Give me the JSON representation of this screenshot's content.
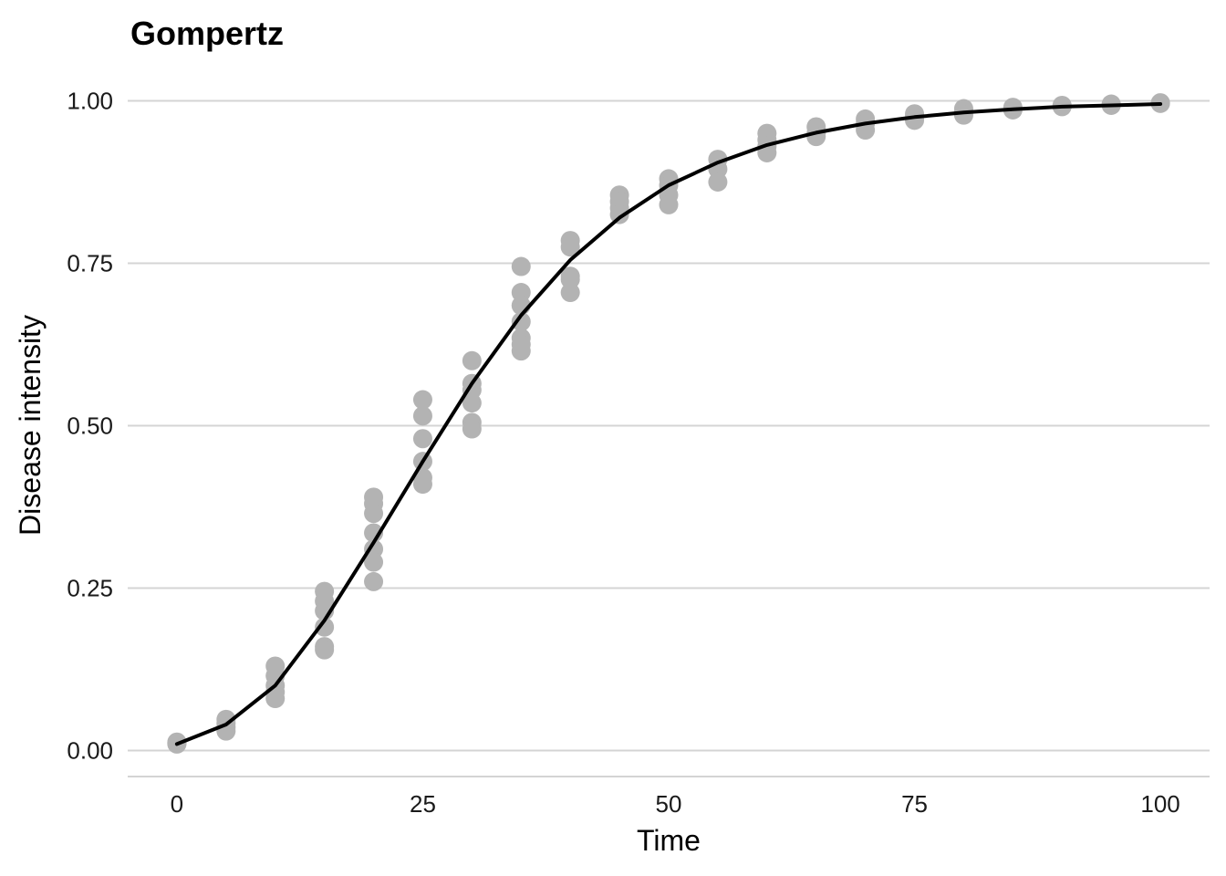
{
  "chart_data": {
    "type": "scatter",
    "title": "Gompertz",
    "xlabel": "Time",
    "ylabel": "Disease intensity",
    "xlim": [
      -5,
      105
    ],
    "ylim": [
      -0.04,
      1.04
    ],
    "x_ticks": [
      0,
      25,
      50,
      75,
      100
    ],
    "x_tick_labels": [
      "0",
      "25",
      "50",
      "75",
      "100"
    ],
    "y_ticks": [
      0,
      0.25,
      0.5,
      0.75,
      1.0
    ],
    "y_tick_labels": [
      "0.00",
      "0.25",
      "0.50",
      "0.75",
      "1.00"
    ],
    "grid": "horizontal",
    "legend": "none",
    "point_color": "#b3b3b3",
    "line_color": "#000000",
    "series": [
      {
        "type": "scatter",
        "points": [
          [
            0,
            0.012
          ],
          [
            0,
            0.011
          ],
          [
            0,
            0.01
          ],
          [
            0,
            0.013
          ],
          [
            5,
            0.048
          ],
          [
            5,
            0.042
          ],
          [
            5,
            0.036
          ],
          [
            5,
            0.03
          ],
          [
            10,
            0.13
          ],
          [
            10,
            0.115
          ],
          [
            10,
            0.1
          ],
          [
            10,
            0.09
          ],
          [
            10,
            0.08
          ],
          [
            15,
            0.245
          ],
          [
            15,
            0.23
          ],
          [
            15,
            0.215
          ],
          [
            15,
            0.19
          ],
          [
            15,
            0.16
          ],
          [
            15,
            0.155
          ],
          [
            20,
            0.39
          ],
          [
            20,
            0.38
          ],
          [
            20,
            0.365
          ],
          [
            20,
            0.335
          ],
          [
            20,
            0.31
          ],
          [
            20,
            0.29
          ],
          [
            20,
            0.26
          ],
          [
            25,
            0.54
          ],
          [
            25,
            0.515
          ],
          [
            25,
            0.48
          ],
          [
            25,
            0.445
          ],
          [
            25,
            0.42
          ],
          [
            25,
            0.41
          ],
          [
            30,
            0.6
          ],
          [
            30,
            0.565
          ],
          [
            30,
            0.555
          ],
          [
            30,
            0.535
          ],
          [
            30,
            0.505
          ],
          [
            30,
            0.495
          ],
          [
            35,
            0.745
          ],
          [
            35,
            0.705
          ],
          [
            35,
            0.685
          ],
          [
            35,
            0.66
          ],
          [
            35,
            0.635
          ],
          [
            35,
            0.625
          ],
          [
            35,
            0.615
          ],
          [
            40,
            0.785
          ],
          [
            40,
            0.775
          ],
          [
            40,
            0.73
          ],
          [
            40,
            0.725
          ],
          [
            40,
            0.705
          ],
          [
            45,
            0.855
          ],
          [
            45,
            0.845
          ],
          [
            45,
            0.835
          ],
          [
            45,
            0.825
          ],
          [
            50,
            0.88
          ],
          [
            50,
            0.87
          ],
          [
            50,
            0.855
          ],
          [
            50,
            0.84
          ],
          [
            55,
            0.91
          ],
          [
            55,
            0.895
          ],
          [
            55,
            0.875
          ],
          [
            60,
            0.95
          ],
          [
            60,
            0.94
          ],
          [
            60,
            0.93
          ],
          [
            60,
            0.92
          ],
          [
            65,
            0.96
          ],
          [
            65,
            0.95
          ],
          [
            65,
            0.945
          ],
          [
            70,
            0.972
          ],
          [
            70,
            0.965
          ],
          [
            70,
            0.955
          ],
          [
            75,
            0.98
          ],
          [
            75,
            0.975
          ],
          [
            75,
            0.97
          ],
          [
            80,
            0.988
          ],
          [
            80,
            0.983
          ],
          [
            80,
            0.978
          ],
          [
            85,
            0.99
          ],
          [
            85,
            0.986
          ],
          [
            90,
            0.993
          ],
          [
            90,
            0.991
          ],
          [
            95,
            0.995
          ],
          [
            95,
            0.993
          ],
          [
            100,
            0.997
          ],
          [
            100,
            0.996
          ]
        ]
      },
      {
        "type": "line",
        "x": [
          0,
          5,
          10,
          15,
          20,
          25,
          30,
          35,
          40,
          45,
          50,
          55,
          60,
          65,
          70,
          75,
          80,
          85,
          90,
          95,
          100
        ],
        "y": [
          0.01,
          0.04,
          0.1,
          0.2,
          0.32,
          0.445,
          0.565,
          0.67,
          0.755,
          0.82,
          0.87,
          0.905,
          0.932,
          0.951,
          0.965,
          0.975,
          0.982,
          0.987,
          0.991,
          0.993,
          0.995
        ]
      }
    ]
  }
}
